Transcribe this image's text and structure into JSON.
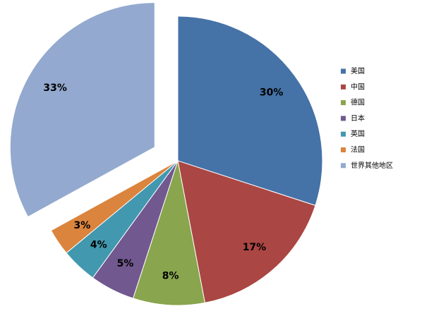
{
  "chart_data": {
    "type": "pie",
    "categories": [
      "美国",
      "中国",
      "德国",
      "日本",
      "英国",
      "法国",
      "世界其他地区"
    ],
    "values": [
      30,
      17,
      8,
      5,
      4,
      3,
      33
    ],
    "value_labels": [
      "30%",
      "17%",
      "8%",
      "5%",
      "4%",
      "3%",
      "33%"
    ],
    "colors": [
      "#4572a7",
      "#aa4643",
      "#89a54e",
      "#71588f",
      "#4198af",
      "#db843d",
      "#93a9cf"
    ],
    "legend": "right"
  }
}
